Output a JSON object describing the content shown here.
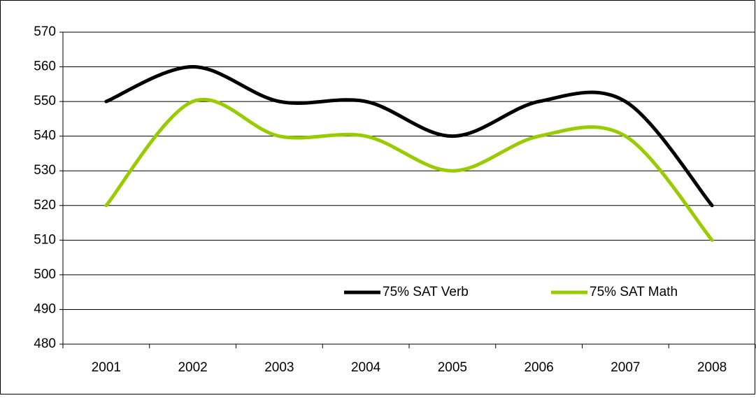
{
  "chart_data": {
    "type": "line",
    "smooth": true,
    "categories": [
      "2001",
      "2002",
      "2003",
      "2004",
      "2005",
      "2006",
      "2007",
      "2008"
    ],
    "series": [
      {
        "name": "75% SAT Verb",
        "color": "#000000",
        "values": [
          550,
          560,
          550,
          550,
          540,
          550,
          550,
          520
        ]
      },
      {
        "name": "75% SAT Math",
        "color": "#99cc00",
        "values": [
          520,
          550,
          540,
          540,
          530,
          540,
          540,
          510
        ]
      }
    ],
    "ylim": [
      480,
      570
    ],
    "yticks": [
      480,
      490,
      500,
      510,
      520,
      530,
      540,
      550,
      560,
      570
    ],
    "grid": true,
    "legend": "lower right"
  }
}
